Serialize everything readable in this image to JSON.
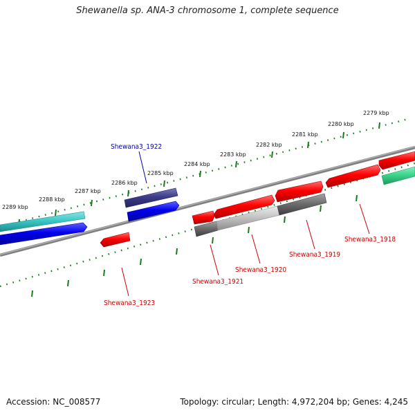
{
  "title": "Shewanella sp. ANA-3 chromosome 1, complete sequence",
  "footer": {
    "accession": "Accession: NC_008577",
    "summary": "Topology: circular; Length: 4,972,204 bp; Genes: 4,245"
  },
  "ticks": [
    {
      "label": "2279 kbp"
    },
    {
      "label": "2280 kbp"
    },
    {
      "label": "2281 kbp"
    },
    {
      "label": "2282 kbp"
    },
    {
      "label": "2283 kbp"
    },
    {
      "label": "2284 kbp"
    },
    {
      "label": "2285 kbp"
    },
    {
      "label": "2286 kbp"
    },
    {
      "label": "2287 kbp"
    },
    {
      "label": "2288 kbp"
    },
    {
      "label": "2289 kbp"
    }
  ],
  "gene_labels": [
    {
      "text": "Shewana3_1922",
      "color": "#0000aa"
    },
    {
      "text": "Shewana3_1923",
      "color": "#cc0000"
    },
    {
      "text": "Shewana3_1921",
      "color": "#cc0000"
    },
    {
      "text": "Shewana3_1920",
      "color": "#cc0000"
    },
    {
      "text": "Shewana3_1919",
      "color": "#cc0000"
    },
    {
      "text": "Shewana3_1918",
      "color": "#cc0000"
    }
  ],
  "colors": {
    "backbone": "#888888",
    "tick_green": "#1a7a1a",
    "cds_red": "#ff0000",
    "cds_blue": "#0000ee",
    "cds_navy": "#3c3c8c",
    "cds_cyan": "#3cc8c8",
    "cds_seagreen": "#3cd68c",
    "cds_gray": "#6e6e6e",
    "cds_lightgray": "#c4c4c4"
  }
}
